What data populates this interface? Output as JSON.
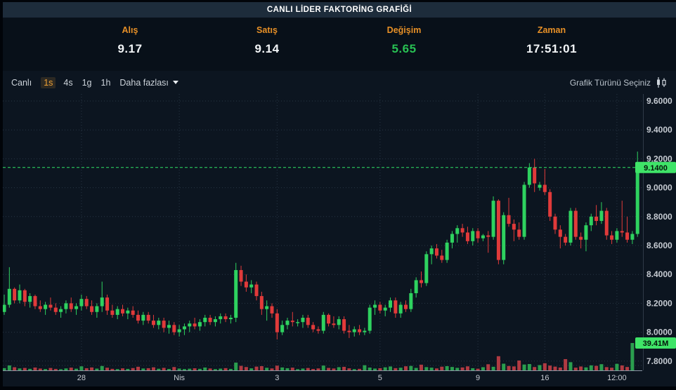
{
  "title": "CANLI LİDER FAKTORİNG GRAFİĞİ",
  "quote": {
    "fields": [
      {
        "name": "alis",
        "label": "Alış",
        "value": "9.17",
        "color": "white"
      },
      {
        "name": "satis",
        "label": "Satış",
        "value": "9.14",
        "color": "white"
      },
      {
        "name": "degisim",
        "label": "Değişim",
        "value": "5.65",
        "color": "green"
      },
      {
        "name": "zaman",
        "label": "Zaman",
        "value": "17:51:01",
        "color": "white"
      }
    ]
  },
  "toolbar": {
    "live_label": "Canlı",
    "timeframes": [
      {
        "name": "1s",
        "label": "1s",
        "active": true
      },
      {
        "name": "4s",
        "label": "4s",
        "active": false
      },
      {
        "name": "1g",
        "label": "1g",
        "active": false
      },
      {
        "name": "1h",
        "label": "1h",
        "active": false
      }
    ],
    "more_label": "Daha fazlası",
    "chart_type_label": "Grafik Türünü Seçiniz"
  },
  "colors": {
    "up": "#2ed25f",
    "down": "#e13a3a",
    "vol_up": "#2a9e4e",
    "vol_down": "#b03a42",
    "price_line": "#2fe366",
    "tag_bg": "#3fe468",
    "tag_text": "#04140a",
    "grid": "rgba(120,145,170,0.27)",
    "axis_text": "#c6cbd2",
    "baseline": "#8b97a5",
    "accent_orange": "#e79027",
    "change_green": "#28c153"
  },
  "chart_data": {
    "type": "candlestick",
    "title": "CANLI LİDER FAKTORİNG GRAFİĞİ",
    "interval_selected": "1s",
    "y_axis": {
      "min": 7.8,
      "max": 9.6,
      "step": 0.2,
      "ticks": [
        "9.6000",
        "9.4000",
        "9.2000",
        "9.0000",
        "8.8000",
        "8.6000",
        "8.4000",
        "8.2000",
        "8.0000",
        "7.8000"
      ]
    },
    "x_axis": {
      "labels": [
        {
          "text": "28",
          "index": 15
        },
        {
          "text": "Nis",
          "index": 34
        },
        {
          "text": "3",
          "index": 53
        },
        {
          "text": "5",
          "index": 73
        },
        {
          "text": "9",
          "index": 92
        },
        {
          "text": "16",
          "index": 105
        },
        {
          "text": "12:00",
          "index": 119
        }
      ]
    },
    "last_price": 9.14,
    "last_price_label": "9.1400",
    "last_volume_label": "39.41M",
    "volume_axis_max": 39.41,
    "candles": [
      [
        8.14,
        8.26,
        8.12,
        8.19
      ],
      [
        8.19,
        8.45,
        8.17,
        8.3
      ],
      [
        8.3,
        8.31,
        8.2,
        8.22
      ],
      [
        8.22,
        8.33,
        8.2,
        8.29
      ],
      [
        8.29,
        8.3,
        8.18,
        8.21
      ],
      [
        8.21,
        8.27,
        8.17,
        8.25
      ],
      [
        8.25,
        8.26,
        8.16,
        8.18
      ],
      [
        8.18,
        8.22,
        8.14,
        8.16
      ],
      [
        8.16,
        8.21,
        8.12,
        8.19
      ],
      [
        8.19,
        8.24,
        8.15,
        8.17
      ],
      [
        8.17,
        8.2,
        8.12,
        8.14
      ],
      [
        8.14,
        8.18,
        8.1,
        8.16
      ],
      [
        8.16,
        8.22,
        8.13,
        8.2
      ],
      [
        8.2,
        8.24,
        8.14,
        8.16
      ],
      [
        8.16,
        8.2,
        8.12,
        8.18
      ],
      [
        8.18,
        8.26,
        8.15,
        8.23
      ],
      [
        8.23,
        8.25,
        8.16,
        8.18
      ],
      [
        8.18,
        8.22,
        8.12,
        8.14
      ],
      [
        8.14,
        8.2,
        8.1,
        8.18
      ],
      [
        8.18,
        8.35,
        8.14,
        8.24
      ],
      [
        8.24,
        8.26,
        8.12,
        8.15
      ],
      [
        8.15,
        8.19,
        8.1,
        8.12
      ],
      [
        8.12,
        8.18,
        8.09,
        8.16
      ],
      [
        8.16,
        8.19,
        8.11,
        8.13
      ],
      [
        8.13,
        8.17,
        8.09,
        8.15
      ],
      [
        8.15,
        8.18,
        8.1,
        8.12
      ],
      [
        8.12,
        8.15,
        8.06,
        8.08
      ],
      [
        8.08,
        8.14,
        8.05,
        8.12
      ],
      [
        8.12,
        8.14,
        8.06,
        8.08
      ],
      [
        8.08,
        8.12,
        8.03,
        8.05
      ],
      [
        8.05,
        8.1,
        8.02,
        8.08
      ],
      [
        8.08,
        8.1,
        8.0,
        8.03
      ],
      [
        8.03,
        8.08,
        7.99,
        8.05
      ],
      [
        8.05,
        8.07,
        7.98,
        8.0
      ],
      [
        8.0,
        8.05,
        7.97,
        8.02
      ],
      [
        8.02,
        8.06,
        7.98,
        8.04
      ],
      [
        8.04,
        8.08,
        8.0,
        8.06
      ],
      [
        8.06,
        8.1,
        8.02,
        8.04
      ],
      [
        8.04,
        8.09,
        8.01,
        8.07
      ],
      [
        8.07,
        8.12,
        8.04,
        8.1
      ],
      [
        8.1,
        8.12,
        8.05,
        8.07
      ],
      [
        8.07,
        8.11,
        8.04,
        8.09
      ],
      [
        8.09,
        8.13,
        8.06,
        8.11
      ],
      [
        8.11,
        8.13,
        8.07,
        8.09
      ],
      [
        8.09,
        8.12,
        8.06,
        8.1
      ],
      [
        8.1,
        8.48,
        8.07,
        8.43
      ],
      [
        8.43,
        8.46,
        8.32,
        8.35
      ],
      [
        8.35,
        8.4,
        8.28,
        8.31
      ],
      [
        8.31,
        8.36,
        8.27,
        8.33
      ],
      [
        8.33,
        8.35,
        8.22,
        8.25
      ],
      [
        8.25,
        8.28,
        8.12,
        8.16
      ],
      [
        8.16,
        8.22,
        8.08,
        8.18
      ],
      [
        8.18,
        8.2,
        8.1,
        8.13
      ],
      [
        8.13,
        8.16,
        7.95,
        8.0
      ],
      [
        8.0,
        8.08,
        7.98,
        8.05
      ],
      [
        8.05,
        8.1,
        8.02,
        8.08
      ],
      [
        8.08,
        8.14,
        8.04,
        8.07
      ],
      [
        8.07,
        8.09,
        8.04,
        8.07
      ],
      [
        8.07,
        8.12,
        8.03,
        8.1
      ],
      [
        8.1,
        8.12,
        8.03,
        8.05
      ],
      [
        8.05,
        8.07,
        8.0,
        8.02
      ],
      [
        8.02,
        8.04,
        7.99,
        8.01
      ],
      [
        8.01,
        8.14,
        7.99,
        8.12
      ],
      [
        8.12,
        8.13,
        8.04,
        8.06
      ],
      [
        8.06,
        8.11,
        8.03,
        8.05
      ],
      [
        8.05,
        8.11,
        8.02,
        8.09
      ],
      [
        8.09,
        8.11,
        7.99,
        8.01
      ],
      [
        8.01,
        8.05,
        7.96,
        8.0
      ],
      [
        8.0,
        8.04,
        7.97,
        8.02
      ],
      [
        8.02,
        8.05,
        7.98,
        8.0
      ],
      [
        8.0,
        8.03,
        7.98,
        8.01
      ],
      [
        8.01,
        8.19,
        7.99,
        8.17
      ],
      [
        8.17,
        8.22,
        8.12,
        8.19
      ],
      [
        8.19,
        8.21,
        8.13,
        8.15
      ],
      [
        8.15,
        8.19,
        8.11,
        8.17
      ],
      [
        8.17,
        8.24,
        8.14,
        8.22
      ],
      [
        8.22,
        8.24,
        8.1,
        8.13
      ],
      [
        8.13,
        8.21,
        8.1,
        8.19
      ],
      [
        8.19,
        8.22,
        8.14,
        8.16
      ],
      [
        8.16,
        8.3,
        8.14,
        8.27
      ],
      [
        8.27,
        8.38,
        8.24,
        8.36
      ],
      [
        8.36,
        8.42,
        8.31,
        8.34
      ],
      [
        8.34,
        8.56,
        8.32,
        8.54
      ],
      [
        8.54,
        8.6,
        8.47,
        8.58
      ],
      [
        8.58,
        8.61,
        8.51,
        8.53
      ],
      [
        8.53,
        8.57,
        8.48,
        8.5
      ],
      [
        8.5,
        8.64,
        8.48,
        8.62
      ],
      [
        8.62,
        8.7,
        8.58,
        8.68
      ],
      [
        8.68,
        8.74,
        8.62,
        8.72
      ],
      [
        8.72,
        8.75,
        8.66,
        8.69
      ],
      [
        8.69,
        8.73,
        8.61,
        8.63
      ],
      [
        8.63,
        8.72,
        8.6,
        8.7
      ],
      [
        8.7,
        8.72,
        8.62,
        8.65
      ],
      [
        8.65,
        8.68,
        8.63,
        8.67
      ],
      [
        8.67,
        8.7,
        8.55,
        8.66
      ],
      [
        8.66,
        8.94,
        8.64,
        8.91
      ],
      [
        8.91,
        8.92,
        8.47,
        8.5
      ],
      [
        8.5,
        8.83,
        8.47,
        8.81
      ],
      [
        8.81,
        8.93,
        8.73,
        8.75
      ],
      [
        8.75,
        8.78,
        8.63,
        8.71
      ],
      [
        8.71,
        8.76,
        8.64,
        8.66
      ],
      [
        8.66,
        9.04,
        8.64,
        9.02
      ],
      [
        9.02,
        9.17,
        9.0,
        9.14
      ],
      [
        9.14,
        9.2,
        8.97,
        9.03
      ],
      [
        9.0,
        9.04,
        8.98,
        9.02
      ],
      [
        9.02,
        9.13,
        8.95,
        8.97
      ],
      [
        8.97,
        8.99,
        8.77,
        8.8
      ],
      [
        8.8,
        8.82,
        8.68,
        8.71
      ],
      [
        8.71,
        8.74,
        8.58,
        8.66
      ],
      [
        8.66,
        8.68,
        8.6,
        8.62
      ],
      [
        8.62,
        8.86,
        8.6,
        8.84
      ],
      [
        8.84,
        8.86,
        8.64,
        8.66
      ],
      [
        8.66,
        8.69,
        8.58,
        8.64
      ],
      [
        8.64,
        8.76,
        8.56,
        8.74
      ],
      [
        8.74,
        8.82,
        8.7,
        8.8
      ],
      [
        8.8,
        8.88,
        8.74,
        8.77
      ],
      [
        8.77,
        8.9,
        8.75,
        8.84
      ],
      [
        8.84,
        8.86,
        8.64,
        8.67
      ],
      [
        8.67,
        8.7,
        8.61,
        8.64
      ],
      [
        8.64,
        8.72,
        8.62,
        8.7
      ],
      [
        8.7,
        8.91,
        8.66,
        8.69
      ],
      [
        8.69,
        8.8,
        8.62,
        8.64
      ],
      [
        8.64,
        8.7,
        8.61,
        8.68
      ],
      [
        8.68,
        9.25,
        8.66,
        9.14
      ]
    ],
    "volumes": [
      3.2,
      7.1,
      4.5,
      2.8,
      3.5,
      2.2,
      4.1,
      2.6,
      1.9,
      3.4,
      2.1,
      1.6,
      2.8,
      3.9,
      2.4,
      5.8,
      3.1,
      4.2,
      2.5,
      6.3,
      3.8,
      2.2,
      1.8,
      2.9,
      2.1,
      3.3,
      5.2,
      2.7,
      3.1,
      4.4,
      2.3,
      3.6,
      2.0,
      4.8,
      2.6,
      1.9,
      2.4,
      3.0,
      2.2,
      4.1,
      2.7,
      1.8,
      2.5,
      3.2,
      2.1,
      11.2,
      6.5,
      4.8,
      2.9,
      5.4,
      6.1,
      3.7,
      2.8,
      6.8,
      4.2,
      3.1,
      3.9,
      1.7,
      2.6,
      3.4,
      2.0,
      2.8,
      6.9,
      3.5,
      2.7,
      4.6,
      5.1,
      2.9,
      1.8,
      2.2,
      7.4,
      4.0,
      2.6,
      3.1,
      4.4,
      5.6,
      3.2,
      3.8,
      5.9,
      6.4,
      3.5,
      8.2,
      4.7,
      3.9,
      2.8,
      5.3,
      6.1,
      4.9,
      3.6,
      4.2,
      5.8,
      3.1,
      2.4,
      4.6,
      8.8,
      5.2,
      20.4,
      9.6,
      6.3,
      5.7,
      14.2,
      8.4,
      9.1,
      4.8,
      7.6,
      10.3,
      6.9,
      5.4,
      4.1,
      16.2,
      11.8,
      3.9,
      5.6,
      4.3,
      7.2,
      6.5,
      8.9,
      4.7,
      3.8,
      9.4,
      7.1,
      4.9,
      39.41
    ]
  }
}
